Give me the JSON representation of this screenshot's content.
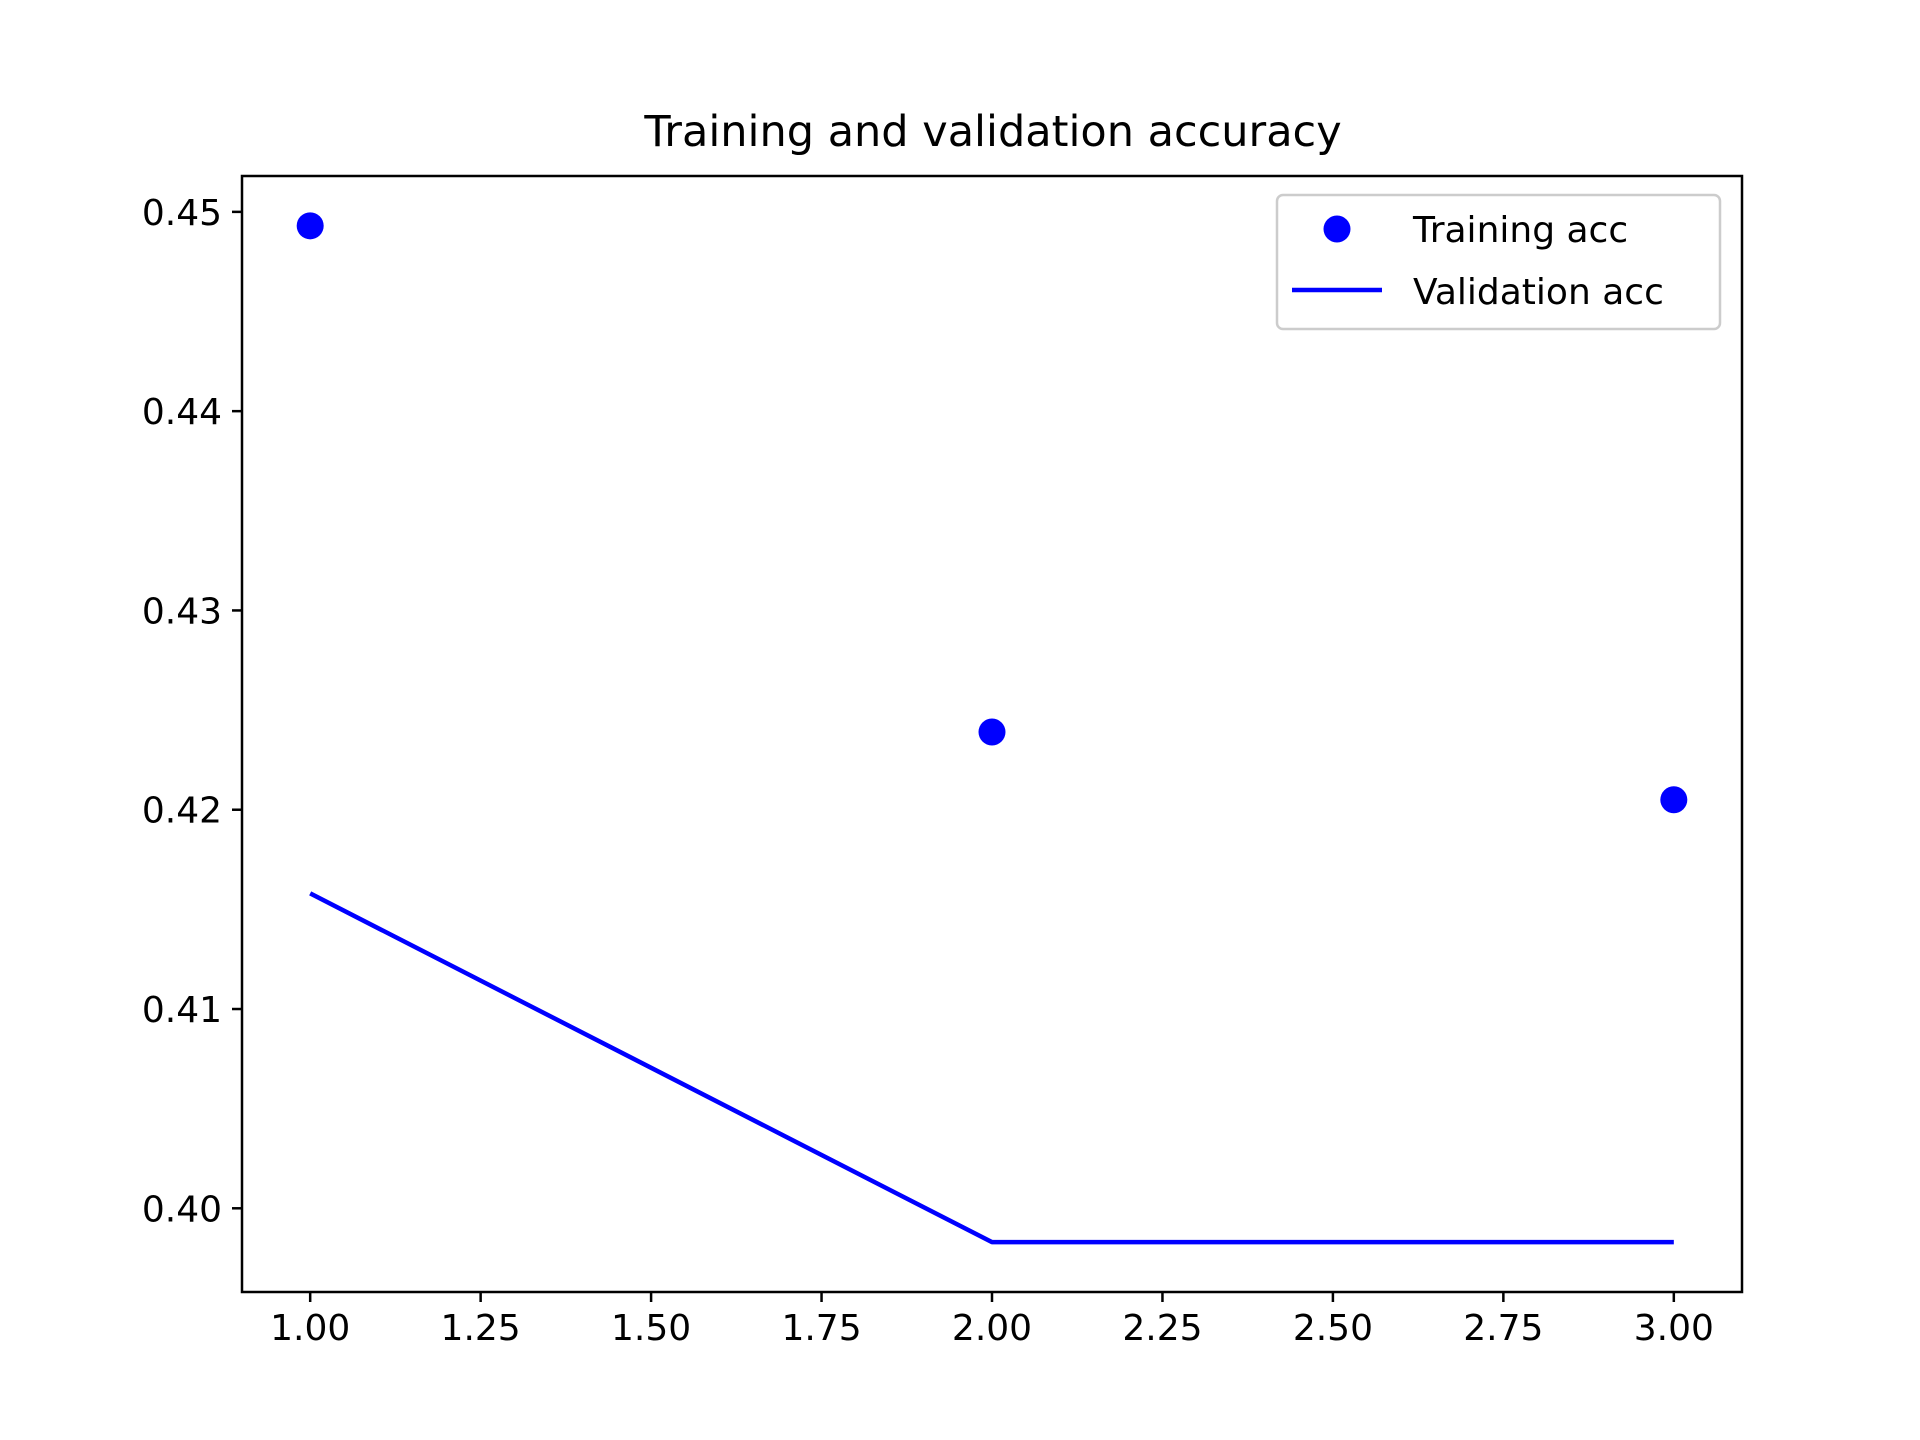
{
  "chart_data": {
    "type": "line",
    "title": "Training and validation accuracy",
    "xlabel": "",
    "ylabel": "",
    "xlim": [
      0.9,
      3.1
    ],
    "ylim": [
      0.3958,
      0.4518
    ],
    "x_ticks": [
      1.0,
      1.25,
      1.5,
      1.75,
      2.0,
      2.25,
      2.5,
      2.75,
      3.0
    ],
    "x_tick_labels": [
      "1.00",
      "1.25",
      "1.50",
      "1.75",
      "2.00",
      "2.25",
      "2.50",
      "2.75",
      "3.00"
    ],
    "y_ticks": [
      0.4,
      0.41,
      0.42,
      0.43,
      0.44,
      0.45
    ],
    "y_tick_labels": [
      "0.40",
      "0.41",
      "0.42",
      "0.43",
      "0.44",
      "0.45"
    ],
    "grid": false,
    "legend_position": "top-right",
    "series": [
      {
        "name": "Training acc",
        "style": "markers",
        "color": "#0000ff",
        "x": [
          1,
          2,
          3
        ],
        "y": [
          0.4493,
          0.4239,
          0.4205
        ]
      },
      {
        "name": "Validation acc",
        "style": "line",
        "color": "#0000ff",
        "x": [
          1,
          2,
          3
        ],
        "y": [
          0.4158,
          0.3983,
          0.3983
        ]
      }
    ]
  }
}
